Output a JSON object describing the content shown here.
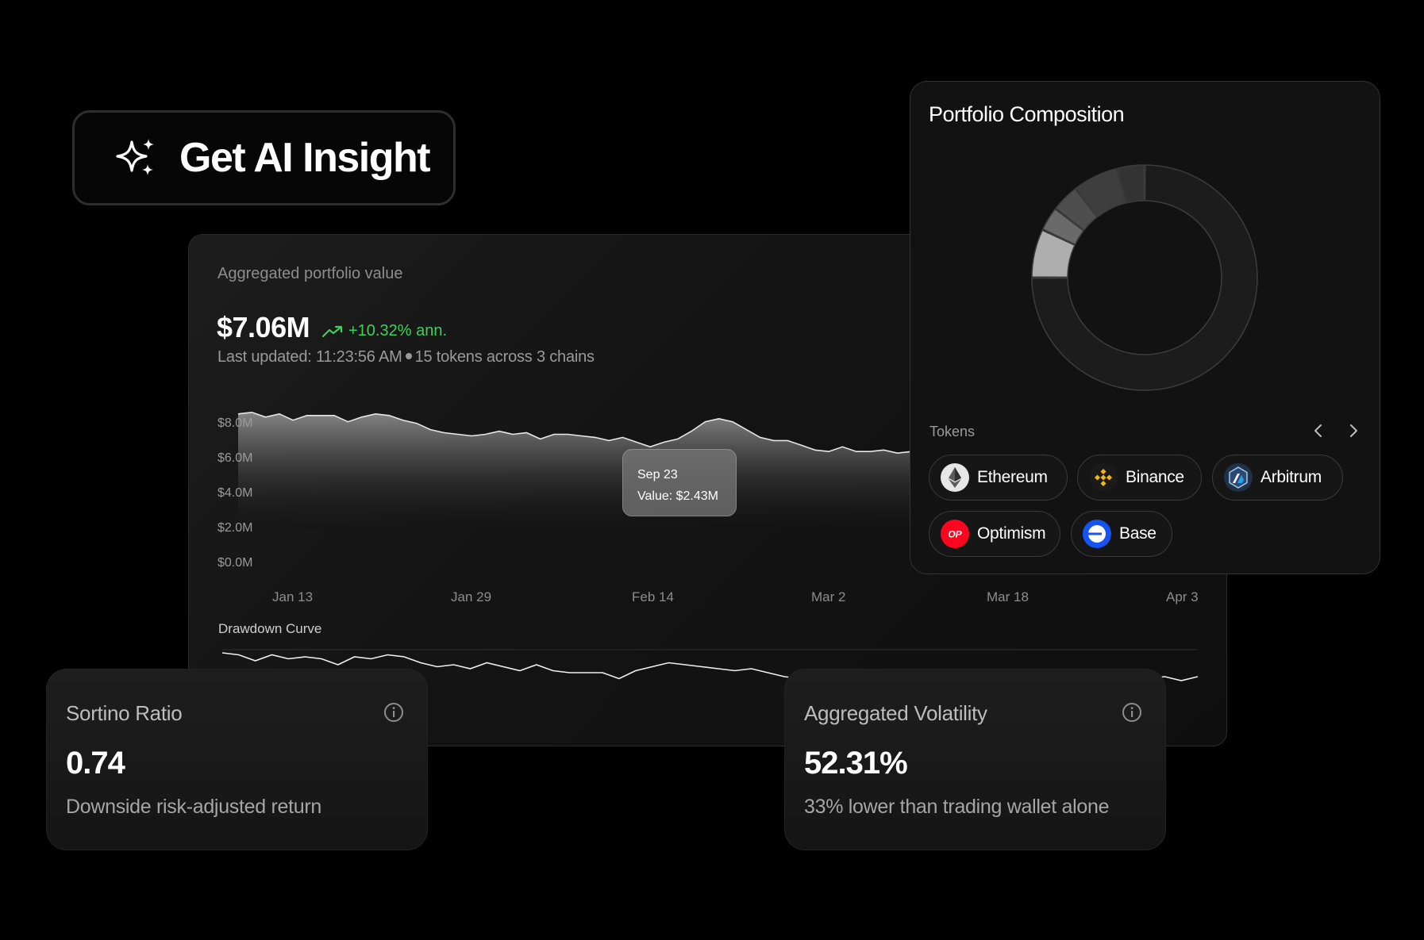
{
  "ai_button": {
    "label": "Get AI Insight",
    "icon": "sparkles-icon"
  },
  "portfolio_chart": {
    "title": "Aggregated portfolio value",
    "value": "$7.06M",
    "change": "+10.32% ann.",
    "updated": "Last updated: 11:23:56 AM",
    "tokens_count": "15 tokens",
    "chains": " across 3 chains",
    "tooltip": {
      "date": "Sep 23",
      "value": "Value: $2.43M"
    },
    "drawdown_title": "Drawdown Curve",
    "accent_positive": "#3ecf5b"
  },
  "chart_data": {
    "type": "area",
    "title": "",
    "y_ticks": [
      "$8.0M",
      "$6.0M",
      "$4.0M",
      "$2.0M",
      "$0.0M"
    ],
    "ylim": [
      0,
      8.0
    ],
    "x_ticks": [
      "Jan 13",
      "Jan 29",
      "Feb 14",
      "Mar 2",
      "Mar 18",
      "Apr 3"
    ],
    "series": [
      {
        "values": [
          7.3,
          7.4,
          7.1,
          7.3,
          6.9,
          7.2,
          7.2,
          7.2,
          6.8,
          7.1,
          7.3,
          7.2,
          6.9,
          6.7,
          6.3,
          6.1,
          6.0,
          5.9,
          6.0,
          6.2,
          6.0,
          6.1,
          5.7,
          6.0,
          6.0,
          5.9,
          5.8,
          5.6,
          5.8,
          5.5,
          5.2,
          5.5,
          5.7,
          6.2,
          6.8,
          7.0,
          6.8,
          6.3,
          5.8,
          5.6,
          5.6,
          5.3,
          5.0,
          4.9,
          5.2,
          4.9,
          4.9,
          5.0,
          4.8,
          4.9,
          5.0,
          5.1,
          5.0,
          4.9,
          5.0,
          5.1,
          5.0,
          4.9,
          5.0,
          5.1
        ]
      }
    ],
    "drawdown": {
      "name": "Drawdown Curve",
      "values": [
        0,
        -0.1,
        -0.4,
        -0.1,
        -0.3,
        -0.2,
        -0.3,
        -0.6,
        -0.2,
        -0.3,
        -0.1,
        -0.2,
        -0.5,
        -0.7,
        -0.6,
        -0.8,
        -0.5,
        -0.7,
        -0.9,
        -0.6,
        -0.9,
        -1.0,
        -1.0,
        -1.0,
        -1.3,
        -0.9,
        -0.7,
        -0.5,
        -0.6,
        -0.7,
        -0.8,
        -0.9,
        -0.8,
        -1.0,
        -1.2,
        -1.3,
        -1.4,
        -1.6,
        -1.5,
        -1.6,
        -1.7,
        -1.6,
        -1.8,
        -1.7,
        -1.6,
        -1.7,
        -1.6,
        -1.5,
        -1.6,
        -1.5,
        -1.4,
        -1.2,
        -1.3,
        -1.3,
        -1.2,
        -1.4,
        -1.3,
        -1.2,
        -1.4,
        -1.2
      ]
    }
  },
  "composition": {
    "title": "Portfolio Composition",
    "tokens_label": "Tokens",
    "donut": [
      {
        "share": 0.75,
        "color": "#1c1c1c"
      },
      {
        "share": 0.07,
        "color": "#aeaeae"
      },
      {
        "share": 0.035,
        "color": "#6a6a6a"
      },
      {
        "share": 0.04,
        "color": "#4e4e4e"
      },
      {
        "share": 0.065,
        "color": "#3e3e3e"
      },
      {
        "share": 0.04,
        "color": "#333333"
      }
    ],
    "tokens": [
      {
        "name": "Ethereum",
        "icon": "ethereum-icon"
      },
      {
        "name": "Binance",
        "icon": "binance-icon"
      },
      {
        "name": "Arbitrum",
        "icon": "arbitrum-icon"
      },
      {
        "name": "Optimism",
        "icon": "optimism-icon",
        "badge": "OP"
      },
      {
        "name": "Base",
        "icon": "base-icon"
      }
    ]
  },
  "cards": {
    "sortino": {
      "title": "Sortino Ratio",
      "value": "0.74",
      "subtitle": "Downside risk-adjusted return"
    },
    "volatility": {
      "title": "Aggregated Volatility",
      "value": "52.31%",
      "subtitle": "33% lower than trading wallet alone"
    }
  }
}
